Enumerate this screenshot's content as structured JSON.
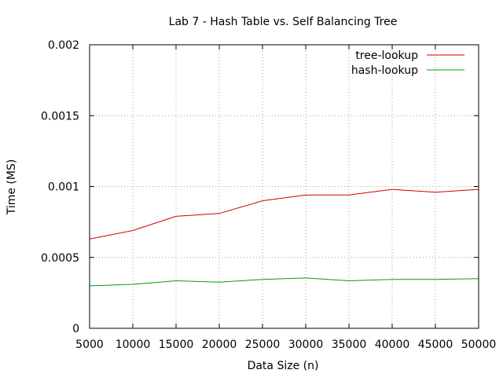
{
  "chart_data": {
    "type": "line",
    "title": "Lab 7 - Hash Table vs. Self Balancing Tree",
    "xlabel": "Data Size (n)",
    "ylabel": "Time (MS)",
    "xlim": [
      5000,
      50000
    ],
    "ylim": [
      0,
      0.002
    ],
    "x_ticks": [
      "5000",
      "10000",
      "15000",
      "20000",
      "25000",
      "30000",
      "35000",
      "40000",
      "45000",
      "50000"
    ],
    "y_ticks": [
      "0",
      "0.0005",
      "0.001",
      "0.0015",
      "0.002"
    ],
    "grid": true,
    "legend_position": "top-right",
    "x": [
      5000,
      10000,
      15000,
      20000,
      25000,
      30000,
      35000,
      40000,
      45000,
      50000
    ],
    "series": [
      {
        "name": "tree-lookup",
        "color": "#d00000",
        "values": [
          0.00063,
          0.00069,
          0.00079,
          0.00081,
          0.0009,
          0.00094,
          0.00094,
          0.00098,
          0.00096,
          0.00098
        ]
      },
      {
        "name": "hash-lookup",
        "color": "#00a000",
        "values": [
          0.0003,
          0.00031,
          0.000335,
          0.000325,
          0.000345,
          0.000355,
          0.000335,
          0.000345,
          0.000345,
          0.00035
        ]
      }
    ]
  }
}
